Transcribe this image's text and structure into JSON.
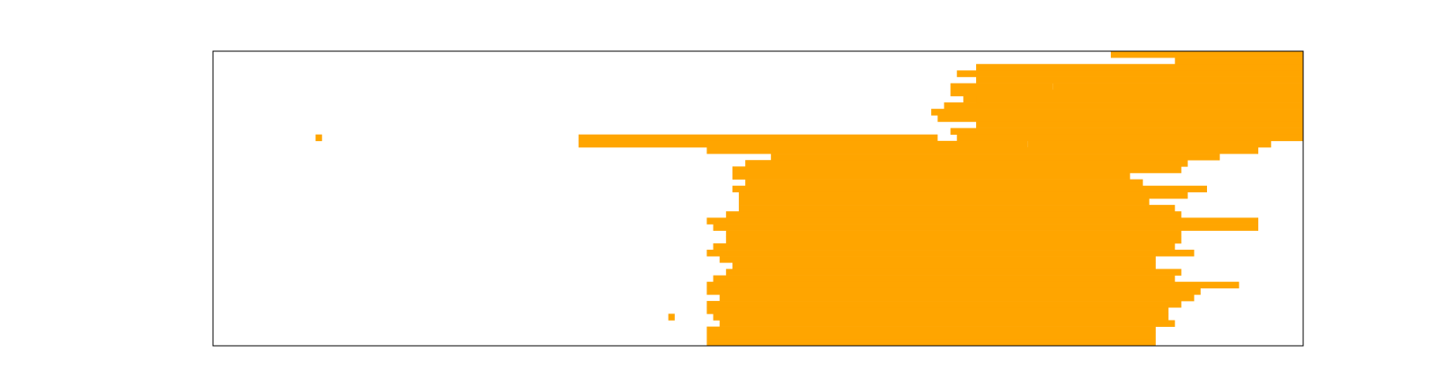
{
  "colors": {
    "fill": "#ffa500",
    "frame": "#000000",
    "background": "#ffffff"
  },
  "chart_data": {
    "type": "heatmap",
    "title": "",
    "xlabel": "",
    "ylabel": "",
    "legend": "none",
    "grid": false,
    "xlim": [
      0,
      170
    ],
    "ylim": [
      0,
      46
    ],
    "rows": [
      [
        [
          140,
          170
        ]
      ],
      [
        [
          150,
          170
        ]
      ],
      [
        [
          119,
          170
        ]
      ],
      [
        [
          116,
          170
        ]
      ],
      [
        [
          119,
          170
        ]
      ],
      [
        [
          115,
          131
        ],
        [
          131,
          170
        ]
      ],
      [
        [
          115,
          170
        ]
      ],
      [
        [
          117,
          120
        ],
        [
          119,
          170
        ]
      ],
      [
        [
          114,
          170
        ]
      ],
      [
        [
          112,
          170
        ]
      ],
      [
        [
          113,
          170
        ]
      ],
      [
        [
          119,
          170
        ]
      ],
      [
        [
          115,
          170
        ]
      ],
      [
        [
          16,
          17
        ],
        [
          57,
          113
        ],
        [
          116,
          170
        ]
      ],
      [
        [
          57,
          127
        ],
        [
          127,
          165
        ]
      ],
      [
        [
          77,
          163
        ]
      ],
      [
        [
          87,
          157
        ]
      ],
      [
        [
          83,
          152
        ]
      ],
      [
        [
          81,
          151
        ]
      ],
      [
        [
          81,
          143
        ]
      ],
      [
        [
          83,
          145
        ]
      ],
      [
        [
          81,
          155
        ]
      ],
      [
        [
          82,
          152
        ]
      ],
      [
        [
          82,
          146
        ]
      ],
      [
        [
          82,
          150
        ]
      ],
      [
        [
          80,
          151
        ]
      ],
      [
        [
          77,
          163
        ]
      ],
      [
        [
          78,
          163
        ]
      ],
      [
        [
          80,
          151
        ]
      ],
      [
        [
          80,
          151
        ]
      ],
      [
        [
          78,
          150
        ]
      ],
      [
        [
          77,
          153
        ]
      ],
      [
        [
          79,
          147
        ]
      ],
      [
        [
          81,
          147
        ]
      ],
      [
        [
          80,
          151
        ]
      ],
      [
        [
          78,
          150
        ]
      ],
      [
        [
          77,
          160
        ]
      ],
      [
        [
          77,
          154
        ]
      ],
      [
        [
          79,
          153
        ]
      ],
      [
        [
          77,
          151
        ]
      ],
      [
        [
          77,
          149
        ]
      ],
      [
        [
          71,
          72
        ],
        [
          78,
          149
        ]
      ],
      [
        [
          79,
          150
        ]
      ],
      [
        [
          77,
          147
        ]
      ],
      [
        [
          77,
          147
        ]
      ],
      [
        [
          77,
          147
        ]
      ]
    ]
  }
}
